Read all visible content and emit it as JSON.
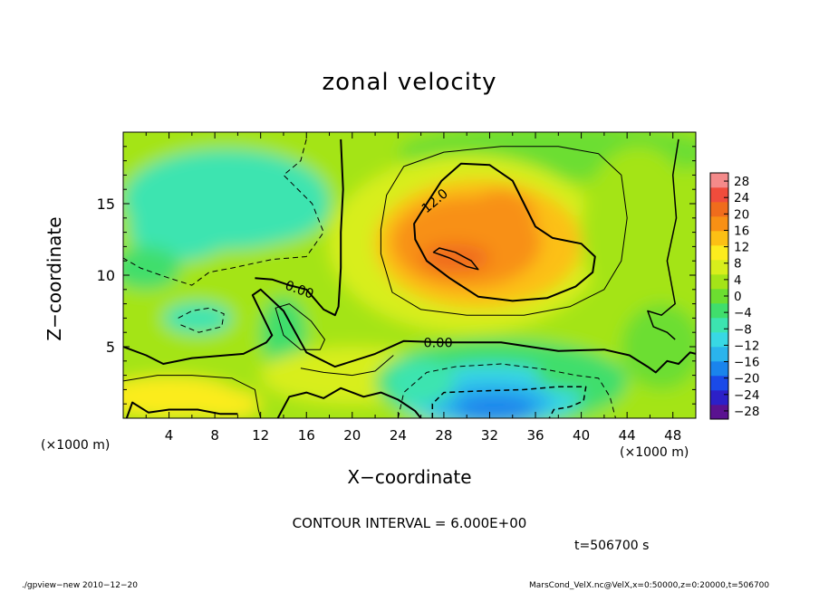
{
  "chart_data": {
    "type": "heatmap",
    "title": "zonal velocity",
    "xlabel": "X−coordinate",
    "ylabel": "Z−coordinate",
    "x_unit_label": "(×1000 m)",
    "xlim": [
      0,
      50
    ],
    "ylim": [
      0,
      20
    ],
    "x_ticks": [
      4,
      8,
      12,
      16,
      20,
      24,
      28,
      32,
      36,
      40,
      44,
      48
    ],
    "y_ticks": [
      5,
      10,
      15
    ],
    "colorbar": {
      "labels": [
        "28",
        "24",
        "20",
        "16",
        "12",
        "8",
        "4",
        "0",
        "−4",
        "−8",
        "−12",
        "−16",
        "−20",
        "−24",
        "−28"
      ],
      "range": [
        -30,
        30
      ],
      "colors": [
        "#5a1290",
        "#2c20c8",
        "#1a4ae8",
        "#1a84ec",
        "#2ab4ec",
        "#38d8e4",
        "#3ce4b0",
        "#40de6c",
        "#6cde30",
        "#a4e418",
        "#d8ee1c",
        "#fcec1e",
        "#fcc014",
        "#f89014",
        "#f06c1c",
        "#f04c3c",
        "#f48a8a"
      ]
    },
    "contour_labels": [
      "12.0",
      "0.00",
      "0.00"
    ],
    "contour_interval": "CONTOUR INTERVAL = 6.000E+00",
    "time": "t=506700 s",
    "features": [
      {
        "name": "positive-core",
        "x": 30,
        "z": 12.5,
        "value": 20
      },
      {
        "name": "negative-core",
        "x": 32,
        "z": 1.2,
        "value": -22
      },
      {
        "name": "upper-left-negative",
        "x": 8,
        "z": 15,
        "value": -8
      }
    ]
  },
  "footer": {
    "left": "./gpview−new  2010−12−20",
    "right": "MarsCond_VelX.nc@VelX,x=0:50000,z=0:20000,t=506700"
  }
}
